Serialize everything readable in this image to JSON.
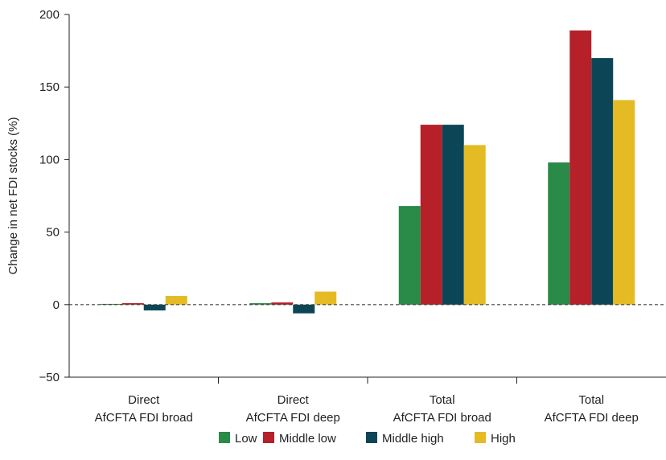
{
  "chart_data": {
    "type": "bar",
    "ylabel": "Change in net FDI stocks (%)",
    "ylim": [
      -50,
      200
    ],
    "yticks": [
      -50,
      0,
      50,
      100,
      150,
      200
    ],
    "ytick_labels": [
      "−50",
      "0",
      "50",
      "100",
      "150",
      "200"
    ],
    "categories": [
      [
        "Direct",
        "AfCFTA FDI broad"
      ],
      [
        "Direct",
        "AfCFTA FDI deep"
      ],
      [
        "Total",
        "AfCFTA FDI broad"
      ],
      [
        "Total",
        "AfCFTA FDI deep"
      ]
    ],
    "series": [
      {
        "name": "Low",
        "color": "#2a8a47",
        "values": [
          0.5,
          1,
          68,
          98
        ]
      },
      {
        "name": "Middle low",
        "color": "#b52029",
        "values": [
          1,
          1.5,
          124,
          189
        ]
      },
      {
        "name": "Middle high",
        "color": "#0c4656",
        "values": [
          -4,
          -6,
          124,
          170
        ]
      },
      {
        "name": "High",
        "color": "#e4bb24",
        "values": [
          6,
          9,
          110,
          141
        ]
      }
    ],
    "zero_line": "dashed",
    "grid": false,
    "legend_position": "bottom-center"
  }
}
